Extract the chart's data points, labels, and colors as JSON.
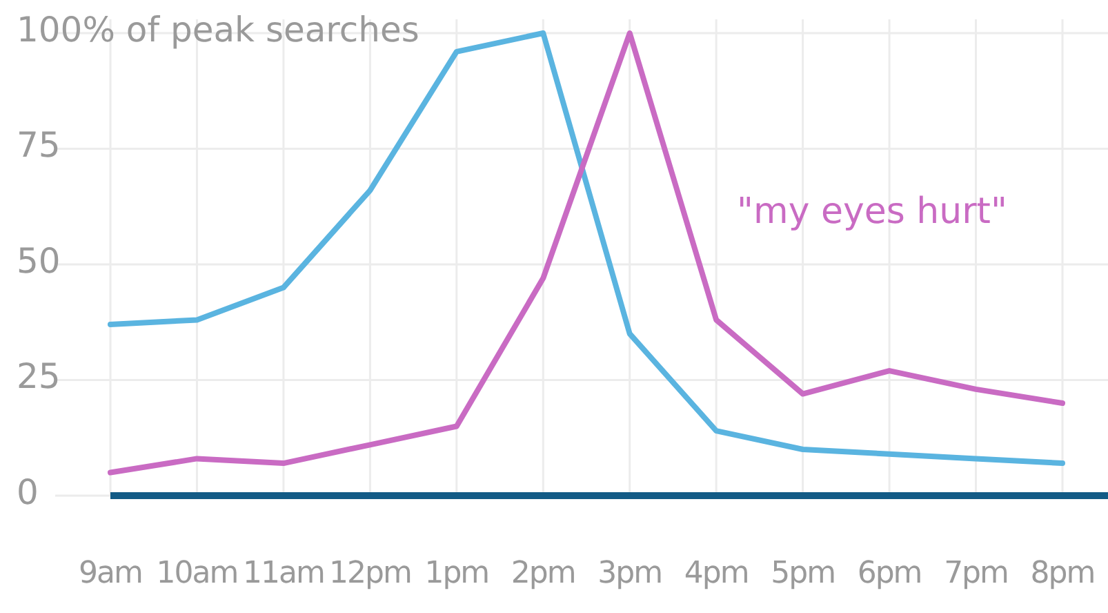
{
  "chart_data": {
    "type": "line",
    "categories": [
      "9am",
      "10am",
      "11am",
      "12pm",
      "1pm",
      "2pm",
      "3pm",
      "4pm",
      "5pm",
      "6pm",
      "7pm",
      "8pm"
    ],
    "series": [
      {
        "color": "#5ab4e0",
        "values": [
          37,
          38,
          45,
          66,
          96,
          100,
          35,
          14,
          10,
          9,
          8,
          7
        ]
      },
      {
        "name": "\"my eyes hurt\"",
        "color": "#c96bc3",
        "values": [
          5,
          8,
          7,
          11,
          15,
          47,
          100,
          38,
          22,
          27,
          23,
          20
        ]
      }
    ],
    "ylim": [
      0,
      100
    ],
    "yticks": [
      0,
      25,
      50,
      75,
      {
        "value": 100,
        "label": "100% of peak searches"
      }
    ],
    "grid": true
  }
}
